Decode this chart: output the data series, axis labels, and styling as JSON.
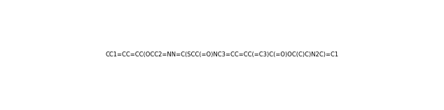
{
  "smiles": "CC1=CC=CC(OCC2=NN=C(SCC(=O)NC3=CC=CC(=C3)C(=O)OC(C)C)N2C)=C1",
  "title": "",
  "bg_color": "#ffffff",
  "fig_width": 6.34,
  "fig_height": 1.58,
  "dpi": 100
}
